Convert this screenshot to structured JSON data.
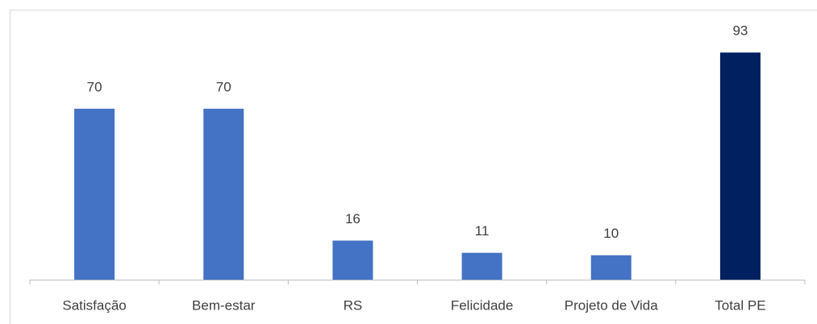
{
  "chart_data": {
    "type": "bar",
    "categories": [
      "Satisfação",
      "Bem-estar",
      "RS",
      "Felicidade",
      "Projeto de Vida",
      "Total PE"
    ],
    "values": [
      70,
      70,
      16,
      11,
      10,
      93
    ],
    "colors": [
      "#4472c4",
      "#4472c4",
      "#4472c4",
      "#4472c4",
      "#4472c4",
      "#002060"
    ],
    "ylim": [
      0,
      100
    ]
  }
}
